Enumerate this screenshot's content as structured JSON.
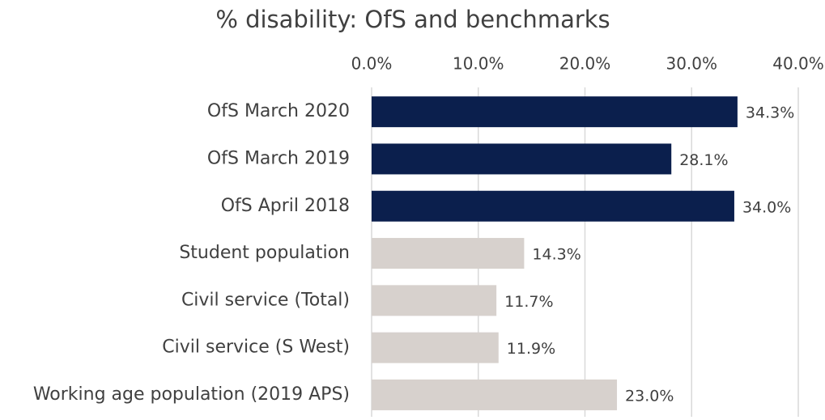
{
  "chart_data": {
    "type": "barh",
    "title": "% disability: OfS and benchmarks",
    "categories": [
      "OfS March 2020",
      "OfS March 2019",
      "OfS April 2018",
      "Student population",
      "Civil service (Total)",
      "Civil service (S West)",
      "Working age population (2019 APS)"
    ],
    "values": [
      34.3,
      28.1,
      34.0,
      14.3,
      11.7,
      11.9,
      23.0
    ],
    "value_labels": [
      "34.3%",
      "28.1%",
      "34.0%",
      "14.3%",
      "11.7%",
      "11.9%",
      "23.0%"
    ],
    "colors": [
      "#0b1f4d",
      "#0b1f4d",
      "#0b1f4d",
      "#d7d1cd",
      "#d7d1cd",
      "#d7d1cd",
      "#d7d1cd"
    ],
    "xlim": [
      0,
      40
    ],
    "xticks": [
      {
        "value": 0,
        "label": "0.0%"
      },
      {
        "value": 10,
        "label": "10.0%"
      },
      {
        "value": 20,
        "label": "20.0%"
      },
      {
        "value": 30,
        "label": "30.0%"
      },
      {
        "value": 40,
        "label": "40.0%"
      }
    ],
    "grid": true
  }
}
